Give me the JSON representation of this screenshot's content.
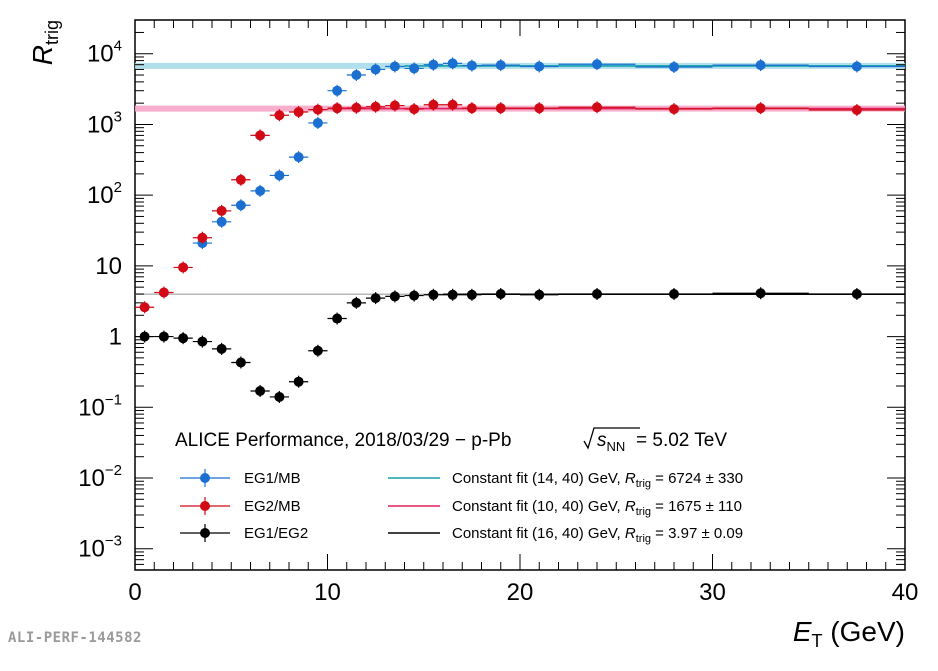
{
  "chart_data": {
    "type": "scatter",
    "title": "",
    "xlabel": "E",
    "xlabel_sub": "T",
    "xlabel_unit": "(GeV)",
    "ylabel": "R",
    "ylabel_sub": "trig",
    "xlim": [
      0,
      40
    ],
    "ylim": [
      0.0005,
      30000
    ],
    "yscale": "log",
    "grid": false,
    "legend_position": "bottom-center",
    "x_ticks": [
      "0",
      "10",
      "20",
      "30",
      "40"
    ],
    "y_ticks": [
      {
        "value": 0.001,
        "base": "10",
        "exp": "−3"
      },
      {
        "value": 0.01,
        "base": "10",
        "exp": "−2"
      },
      {
        "value": 0.1,
        "base": "10",
        "exp": "−1"
      },
      {
        "value": 1,
        "base": "1",
        "exp": ""
      },
      {
        "value": 10,
        "base": "10",
        "exp": ""
      },
      {
        "value": 100,
        "base": "10",
        "exp": "2"
      },
      {
        "value": 1000,
        "base": "10",
        "exp": "3"
      },
      {
        "value": 10000,
        "base": "10",
        "exp": "4"
      }
    ],
    "annotation": {
      "prefix": "ALICE Performance, 2018/03/29 − p-Pb ",
      "sqrt_s": "s",
      "sqrt_sub": "NN",
      "suffix": " = 5.02 TeV"
    },
    "series": [
      {
        "name": "EG1/MB",
        "color": "#1a6fd0",
        "x": [
          3.5,
          4.5,
          5.5,
          6.5,
          7.5,
          8.5,
          9.5,
          10.5,
          11.5,
          12.5,
          13.5,
          14.5,
          15.5,
          16.5,
          17.5,
          19,
          21,
          24,
          28,
          32.5,
          37.5
        ],
        "xerr": [
          0.5,
          0.5,
          0.5,
          0.5,
          0.5,
          0.5,
          0.5,
          0.5,
          0.5,
          0.5,
          0.5,
          0.5,
          0.5,
          0.5,
          0.5,
          1,
          1,
          2,
          2,
          2.5,
          2.5
        ],
        "y": [
          21,
          42,
          72,
          115,
          190,
          345,
          1050,
          3000,
          5000,
          6000,
          6600,
          6200,
          7000,
          7300,
          6800,
          6900,
          6600,
          7100,
          6500,
          6900,
          6600
        ]
      },
      {
        "name": "EG2/MB",
        "color": "#d10a16",
        "x": [
          0.5,
          1.5,
          2.5,
          3.5,
          4.5,
          5.5,
          6.5,
          7.5,
          8.5,
          9.5,
          10.5,
          11.5,
          12.5,
          13.5,
          14.5,
          15.5,
          16.5,
          17.5,
          19,
          21,
          24,
          28,
          32.5,
          37.5
        ],
        "xerr": [
          0.5,
          0.5,
          0.5,
          0.5,
          0.5,
          0.5,
          0.5,
          0.5,
          0.5,
          0.5,
          0.5,
          0.5,
          0.5,
          0.5,
          0.5,
          0.5,
          0.5,
          0.5,
          1,
          1,
          2,
          2,
          2.5,
          2.5
        ],
        "y": [
          2.6,
          4.2,
          9.5,
          25,
          60,
          165,
          700,
          1350,
          1500,
          1620,
          1700,
          1720,
          1780,
          1850,
          1650,
          1900,
          1900,
          1700,
          1700,
          1700,
          1750,
          1650,
          1700,
          1600
        ]
      },
      {
        "name": "EG1/EG2",
        "color": "#000000",
        "x": [
          0.5,
          1.5,
          2.5,
          3.5,
          4.5,
          5.5,
          6.5,
          7.5,
          8.5,
          9.5,
          10.5,
          11.5,
          12.5,
          13.5,
          14.5,
          15.5,
          16.5,
          17.5,
          19,
          21,
          24,
          28,
          32.5,
          37.5
        ],
        "xerr": [
          0.5,
          0.5,
          0.5,
          0.5,
          0.5,
          0.5,
          0.5,
          0.5,
          0.5,
          0.5,
          0.5,
          0.5,
          0.5,
          0.5,
          0.5,
          0.5,
          0.5,
          0.5,
          1,
          1,
          2,
          2,
          2.5,
          2.5
        ],
        "y": [
          1.0,
          1.0,
          0.95,
          0.85,
          0.67,
          0.43,
          0.17,
          0.14,
          0.23,
          0.63,
          1.8,
          3.0,
          3.5,
          3.7,
          3.8,
          3.9,
          3.9,
          3.9,
          4.0,
          3.9,
          4.0,
          4.0,
          4.1,
          4.0
        ]
      }
    ],
    "fits": [
      {
        "name": "Constant fit (14, 40) GeV, ",
        "rsym": "R",
        "rsub": "trig",
        "value_text": " = 6724 ± 330",
        "value": 6724,
        "line_color": "#12a0ac",
        "band_color": "#a8dcea"
      },
      {
        "name": "Constant fit (10, 40) GeV, ",
        "rsym": "R",
        "rsub": "trig",
        "value_text": " = 1675 ± 110",
        "value": 1675,
        "line_color": "#e0205a",
        "band_color": "#f6a6c8"
      },
      {
        "name": "Constant fit (16, 40) GeV, ",
        "rsym": "R",
        "rsub": "trig",
        "value_text": " = 3.97 ± 0.09",
        "value": 3.97,
        "line_color": "#000000",
        "band_color": "#b0b0b0"
      }
    ]
  },
  "watermark": "ALI-PERF-144582"
}
